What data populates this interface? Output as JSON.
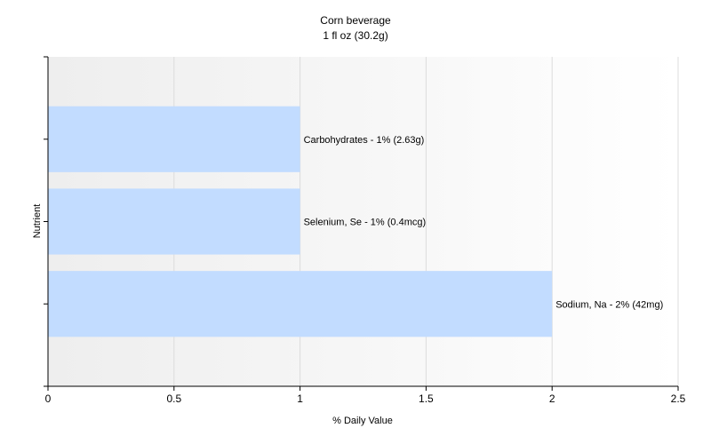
{
  "chart_data": {
    "type": "bar",
    "orientation": "horizontal",
    "title": "Corn beverage",
    "subtitle": "1 fl oz (30.2g)",
    "xlabel": "% Daily Value",
    "ylabel": "Nutrient",
    "xlim": [
      0,
      2.5
    ],
    "xticks": [
      0,
      0.5,
      1,
      1.5,
      2,
      2.5
    ],
    "xtick_labels": [
      "0",
      "0.5",
      "1",
      "1.5",
      "2",
      "2.5"
    ],
    "grid": true,
    "categories": [
      "Carbohydrates",
      "Selenium, Se",
      "Sodium, Na"
    ],
    "values": [
      1,
      1,
      2
    ],
    "data_labels": [
      "Carbohydrates - 1% (2.63g)",
      "Selenium, Se - 1% (0.4mcg)",
      "Sodium, Na - 2% (42mg)"
    ],
    "colors": {
      "bar": "#c2dcff",
      "grid": "#dcdcdc",
      "axis": "#000000"
    }
  }
}
